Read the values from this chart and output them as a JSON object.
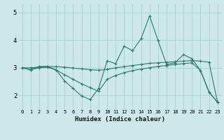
{
  "xlabel": "Humidex (Indice chaleur)",
  "ylabel": "",
  "background_color": "#cce8e8",
  "line_color": "#2a7a6e",
  "xlim": [
    -0.5,
    23.5
  ],
  "ylim": [
    1.5,
    5.3
  ],
  "yticks": [
    2,
    3,
    4,
    5
  ],
  "xticks": [
    0,
    1,
    2,
    3,
    4,
    5,
    6,
    7,
    8,
    9,
    10,
    11,
    12,
    13,
    14,
    15,
    16,
    17,
    18,
    19,
    20,
    21,
    22,
    23
  ],
  "series": [
    [
      3.0,
      2.92,
      3.05,
      3.05,
      2.92,
      2.52,
      2.25,
      1.98,
      1.85,
      2.25,
      3.25,
      3.15,
      3.78,
      3.62,
      4.05,
      4.88,
      3.98,
      3.12,
      3.18,
      3.48,
      3.32,
      2.9,
      2.12,
      1.75
    ],
    [
      3.0,
      2.93,
      3.0,
      3.02,
      2.92,
      2.75,
      2.58,
      2.42,
      2.28,
      2.15,
      2.58,
      2.72,
      2.82,
      2.9,
      2.95,
      3.0,
      3.05,
      3.08,
      3.12,
      3.15,
      3.18,
      2.9,
      2.12,
      1.75
    ],
    [
      3.0,
      3.0,
      3.02,
      3.04,
      3.04,
      3.02,
      2.99,
      2.96,
      2.93,
      2.91,
      2.94,
      3.0,
      3.04,
      3.08,
      3.12,
      3.16,
      3.18,
      3.2,
      3.22,
      3.24,
      3.26,
      3.24,
      3.2,
      1.75
    ]
  ]
}
